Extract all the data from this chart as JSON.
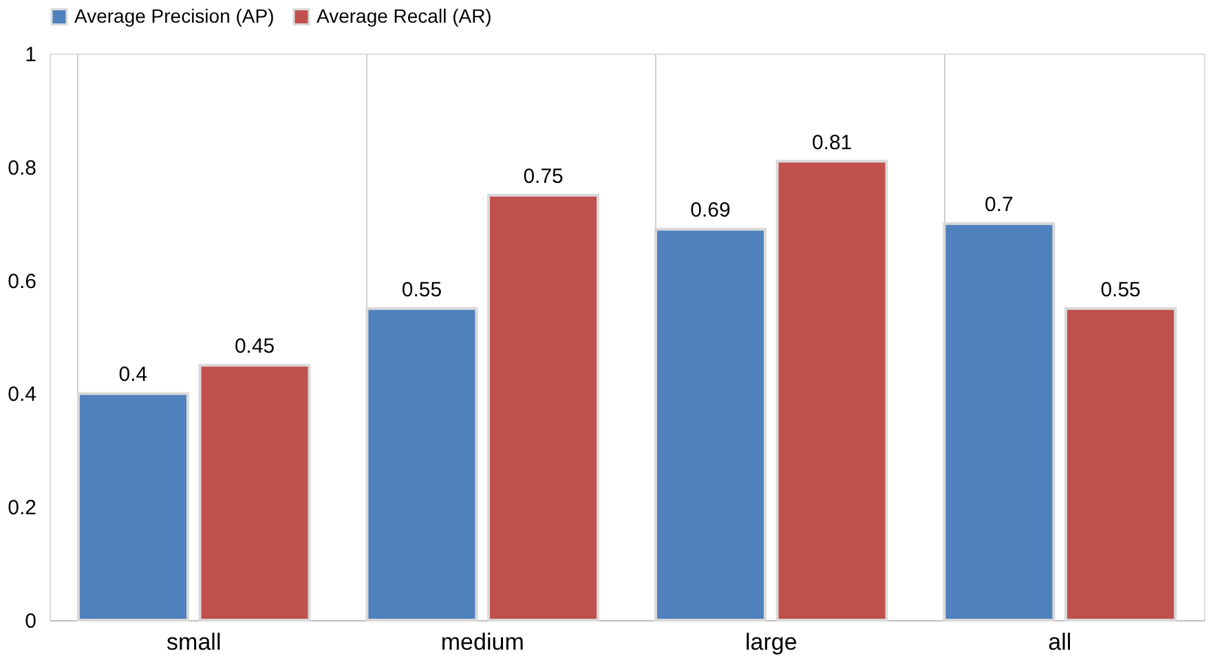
{
  "chart_data": {
    "type": "bar",
    "categories": [
      "small",
      "medium",
      "large",
      "all"
    ],
    "series": [
      {
        "name": "Average Precision (AP)",
        "color": "#4f81bd",
        "values": [
          0.4,
          0.55,
          0.69,
          0.7
        ]
      },
      {
        "name": "Average Recall (AR)",
        "color": "#c0504d",
        "values": [
          0.45,
          0.75,
          0.81,
          0.55
        ]
      }
    ],
    "ylim": [
      0,
      1
    ],
    "yticks": [
      0,
      0.2,
      0.4,
      0.6,
      0.8,
      1
    ],
    "data_labels": true,
    "legend": "top",
    "grid": "x"
  }
}
